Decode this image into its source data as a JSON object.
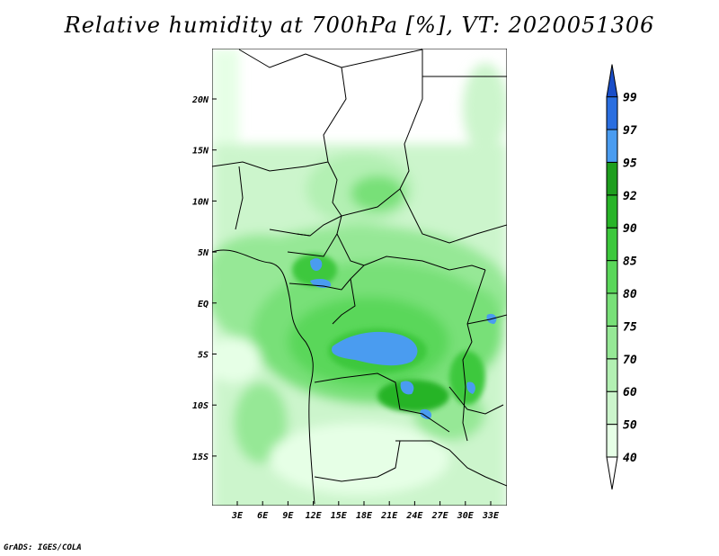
{
  "title": "Relative humidity at 700hPa [%], VT: 2020051306",
  "lat_labels": [
    "20N",
    "15N",
    "10N",
    "5N",
    "EQ",
    "5S",
    "10S",
    "15S"
  ],
  "lon_labels": [
    "3E",
    "6E",
    "9E",
    "12E",
    "15E",
    "18E",
    "21E",
    "24E",
    "27E",
    "30E",
    "33E"
  ],
  "colorbar": {
    "levels": [
      "40",
      "50",
      "60",
      "70",
      "75",
      "80",
      "85",
      "90",
      "92",
      "95",
      "97",
      "99"
    ],
    "colors": [
      "#ffffff",
      "#e6ffe6",
      "#ccf5cc",
      "#b3f0b3",
      "#96e896",
      "#78e078",
      "#5ad75a",
      "#3cc83c",
      "#28b428",
      "#1e9e1e",
      "#4a9cf0",
      "#2a6ee0",
      "#1a4ec8"
    ]
  },
  "credit": "GrADS: IGES/COLA"
}
